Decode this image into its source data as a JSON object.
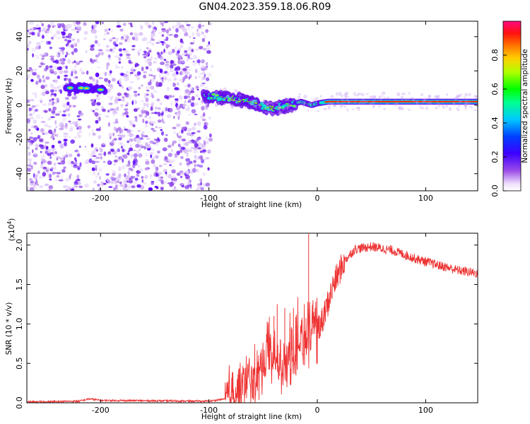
{
  "title": "GN04.2023.359.18.06.R09",
  "chart_data": [
    {
      "type": "heatmap",
      "xlabel": "Height of straight line (km)",
      "ylabel": "Frequency (Hz)",
      "xlim": [
        -268,
        148
      ],
      "ylim": [
        -50,
        49
      ],
      "xticks": [
        -200,
        -100,
        0,
        100
      ],
      "yticks": [
        -40,
        -20,
        0,
        20,
        40
      ],
      "colorbar": {
        "label": "Normalized spectral amplitude",
        "range": [
          0,
          1
        ],
        "ticks": [
          "0.0",
          "0.2",
          "0.4",
          "0.6",
          "0.8"
        ]
      },
      "noise_region_x": [
        -268,
        -95
      ],
      "ridge": [
        {
          "x": -230,
          "y": 10
        },
        {
          "x": -215,
          "y": 10
        },
        {
          "x": -200,
          "y": 9
        },
        {
          "x": -100,
          "y": 5
        },
        {
          "x": -80,
          "y": 4
        },
        {
          "x": -60,
          "y": 2
        },
        {
          "x": -45,
          "y": -2
        },
        {
          "x": -35,
          "y": -1
        },
        {
          "x": -25,
          "y": 0
        },
        {
          "x": -15,
          "y": 2
        },
        {
          "x": -5,
          "y": 0
        },
        {
          "x": 0,
          "y": 1
        },
        {
          "x": 10,
          "y": 2
        },
        {
          "x": 148,
          "y": 2
        }
      ]
    },
    {
      "type": "line",
      "xlabel": "Height of straight line (km)",
      "ylabel": "SNR (10 * v/v)",
      "yscale_note": "(x10",
      "yscale_exp": "4",
      "xlim": [
        -268,
        148
      ],
      "ylim": [
        0,
        2.15
      ],
      "xticks": [
        -200,
        -100,
        0,
        100
      ],
      "yticks": [
        "0.0",
        "0.5",
        "1.0",
        "1.5",
        "2.0"
      ],
      "line_color": "#ee3333",
      "envelope": [
        {
          "x": -268,
          "y": 0.01
        },
        {
          "x": -220,
          "y": 0.02
        },
        {
          "x": -210,
          "y": 0.05
        },
        {
          "x": -200,
          "y": 0.03
        },
        {
          "x": -100,
          "y": 0.02
        },
        {
          "x": -85,
          "y": 0.05
        },
        {
          "x": -70,
          "y": 0.2
        },
        {
          "x": -55,
          "y": 0.35
        },
        {
          "x": -45,
          "y": 0.55
        },
        {
          "x": -35,
          "y": 0.5
        },
        {
          "x": -25,
          "y": 0.6
        },
        {
          "x": -15,
          "y": 0.8
        },
        {
          "x": -5,
          "y": 0.85
        },
        {
          "x": 5,
          "y": 1.05
        },
        {
          "x": 15,
          "y": 1.5
        },
        {
          "x": 25,
          "y": 1.8
        },
        {
          "x": 35,
          "y": 1.95
        },
        {
          "x": 50,
          "y": 1.98
        },
        {
          "x": 70,
          "y": 1.93
        },
        {
          "x": 90,
          "y": 1.83
        },
        {
          "x": 110,
          "y": 1.75
        },
        {
          "x": 130,
          "y": 1.68
        },
        {
          "x": 148,
          "y": 1.64
        }
      ],
      "spikes": [
        {
          "x": -45,
          "y": 0.75
        },
        {
          "x": -40,
          "y": 1.1
        },
        {
          "x": -37,
          "y": 1.25
        },
        {
          "x": -30,
          "y": 1.2
        },
        {
          "x": -25,
          "y": 0.95
        },
        {
          "x": -22,
          "y": 1.2
        },
        {
          "x": -18,
          "y": 1.1
        },
        {
          "x": -12,
          "y": 1.25
        },
        {
          "x": -8,
          "y": 2.15
        },
        {
          "x": -4,
          "y": 1.3
        },
        {
          "x": 0,
          "y": 0.5
        }
      ]
    }
  ]
}
